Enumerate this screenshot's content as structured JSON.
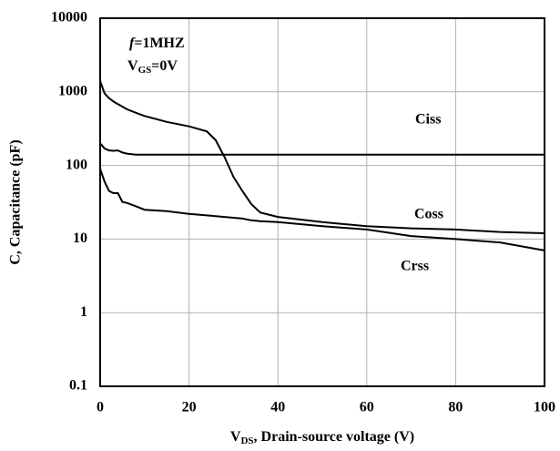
{
  "chart_data": {
    "type": "line",
    "x_label": [
      "V",
      "DS",
      ", Drain-source voltage (V)"
    ],
    "y_label": "C, Capacitance (pF)",
    "annotations": [
      [
        "f",
        "=1MHZ"
      ],
      [
        "V",
        "GS",
        "=0V"
      ]
    ],
    "x": [
      0,
      1,
      2,
      3,
      4,
      5,
      6,
      8,
      10,
      15,
      20,
      24,
      26,
      28,
      30,
      32,
      34,
      36,
      40,
      50,
      60,
      70,
      80,
      90,
      100
    ],
    "series": [
      {
        "name": "Ciss",
        "color": "#000000",
        "values": [
          200,
          170,
          160,
          158,
          160,
          150,
          145,
          140,
          140,
          140,
          140,
          140,
          140,
          140,
          140,
          140,
          140,
          140,
          140,
          140,
          140,
          140,
          140,
          140,
          140
        ]
      },
      {
        "name": "Coss",
        "color": "#000000",
        "values": [
          1400,
          950,
          820,
          740,
          680,
          630,
          580,
          520,
          470,
          390,
          340,
          290,
          220,
          130,
          70,
          45,
          30,
          23,
          20,
          17,
          15,
          14,
          13.5,
          12.5,
          12
        ]
      },
      {
        "name": "Crss",
        "color": "#000000",
        "values": [
          90,
          60,
          45,
          42,
          42,
          32,
          31,
          28,
          25,
          24,
          22,
          21,
          20.5,
          20,
          19.5,
          19,
          18,
          17.5,
          17,
          15,
          13.5,
          11,
          10,
          9,
          7
        ]
      }
    ],
    "xlim": [
      0,
      100
    ],
    "xticks": [
      0,
      20,
      40,
      60,
      80,
      100
    ],
    "ylim": [
      0.1,
      10000
    ],
    "yticks": [
      0.1,
      1,
      10,
      100,
      1000,
      10000
    ],
    "log_y": true,
    "grid": true
  }
}
